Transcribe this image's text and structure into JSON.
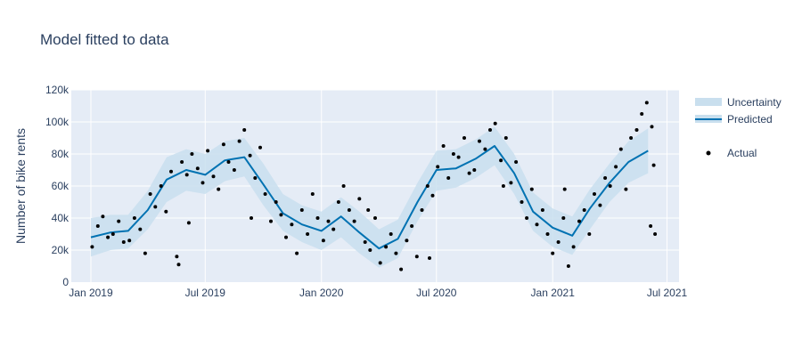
{
  "chart_data": {
    "type": "line",
    "title": "Model fitted to data",
    "xlabel": "",
    "ylabel": "Number of bike rents",
    "xlim": [
      "2018-12-01",
      "2021-07-20"
    ],
    "ylim": [
      0,
      120000
    ],
    "x_ticks": [
      {
        "date": "2019-01-01",
        "label": "Jan 2019"
      },
      {
        "date": "2019-07-01",
        "label": "Jul 2019"
      },
      {
        "date": "2020-01-01",
        "label": "Jan 2020"
      },
      {
        "date": "2020-07-01",
        "label": "Jul 2020"
      },
      {
        "date": "2021-01-01",
        "label": "Jan 2021"
      },
      {
        "date": "2021-07-01",
        "label": "Jul 2021"
      }
    ],
    "y_ticks": [
      {
        "value": 0,
        "label": "0"
      },
      {
        "value": 20000,
        "label": "20k"
      },
      {
        "value": 40000,
        "label": "40k"
      },
      {
        "value": 60000,
        "label": "60k"
      },
      {
        "value": 80000,
        "label": "80k"
      },
      {
        "value": 100000,
        "label": "100k"
      },
      {
        "value": 120000,
        "label": "120k"
      }
    ],
    "grid": true,
    "legend_position": "right",
    "colors": {
      "plot_bg": "#e5ecf6",
      "grid": "#ffffff",
      "predicted": "#0072b2",
      "uncertainty": "#c9dfee",
      "actual": "#000000"
    },
    "series": [
      {
        "name": "Uncertainty",
        "type": "band",
        "x": [
          "2019-01-01",
          "2019-02-01",
          "2019-03-01",
          "2019-04-01",
          "2019-05-01",
          "2019-06-01",
          "2019-07-01",
          "2019-08-01",
          "2019-09-01",
          "2019-10-01",
          "2019-11-01",
          "2019-12-01",
          "2020-01-01",
          "2020-02-01",
          "2020-03-01",
          "2020-04-01",
          "2020-05-01",
          "2020-06-01",
          "2020-07-01",
          "2020-08-01",
          "2020-09-01",
          "2020-10-01",
          "2020-11-01",
          "2020-12-01",
          "2021-01-01",
          "2021-02-01",
          "2021-03-01",
          "2021-04-01",
          "2021-05-01",
          "2021-06-01"
        ],
        "lower": [
          16000,
          20000,
          21000,
          33000,
          50000,
          57000,
          55000,
          63000,
          66000,
          48000,
          32000,
          25000,
          20000,
          28000,
          18000,
          9000,
          15000,
          38000,
          57000,
          59000,
          65000,
          73000,
          55000,
          32000,
          22000,
          17000,
          33000,
          50000,
          62000,
          68000
        ],
        "upper": [
          40000,
          42000,
          42000,
          57000,
          78000,
          83000,
          80000,
          88000,
          90000,
          74000,
          55000,
          48000,
          44000,
          53000,
          44000,
          33000,
          39000,
          62000,
          82000,
          83000,
          89000,
          97000,
          80000,
          56000,
          46000,
          41000,
          58000,
          74000,
          88000,
          96000
        ]
      },
      {
        "name": "Predicted",
        "type": "line",
        "x": [
          "2019-01-01",
          "2019-02-01",
          "2019-03-01",
          "2019-04-01",
          "2019-05-01",
          "2019-06-01",
          "2019-07-01",
          "2019-08-01",
          "2019-09-01",
          "2019-10-01",
          "2019-11-01",
          "2019-12-01",
          "2020-01-01",
          "2020-02-01",
          "2020-03-01",
          "2020-04-01",
          "2020-05-01",
          "2020-06-01",
          "2020-07-01",
          "2020-08-01",
          "2020-09-01",
          "2020-10-01",
          "2020-11-01",
          "2020-12-01",
          "2021-01-01",
          "2021-02-01",
          "2021-03-01",
          "2021-04-01",
          "2021-05-01",
          "2021-06-01"
        ],
        "values": [
          28000,
          31000,
          32000,
          45000,
          64000,
          70000,
          67000,
          76000,
          78000,
          61000,
          43000,
          36000,
          32000,
          41000,
          31000,
          21000,
          27000,
          50000,
          70000,
          71000,
          77000,
          85000,
          68000,
          44000,
          34000,
          29000,
          46000,
          62000,
          75000,
          82000
        ]
      },
      {
        "name": "Actual",
        "type": "scatter",
        "x": [
          "2019-01-03",
          "2019-01-12",
          "2019-01-20",
          "2019-01-28",
          "2019-02-05",
          "2019-02-14",
          "2019-02-22",
          "2019-03-03",
          "2019-03-11",
          "2019-03-20",
          "2019-03-28",
          "2019-04-05",
          "2019-04-13",
          "2019-04-22",
          "2019-04-30",
          "2019-05-08",
          "2019-05-17",
          "2019-05-25",
          "2019-06-02",
          "2019-06-10",
          "2019-06-19",
          "2019-06-27",
          "2019-07-05",
          "2019-07-14",
          "2019-07-22",
          "2019-07-30",
          "2019-08-07",
          "2019-08-16",
          "2019-08-24",
          "2019-09-01",
          "2019-09-10",
          "2019-09-18",
          "2019-09-26",
          "2019-10-04",
          "2019-10-13",
          "2019-10-21",
          "2019-10-29",
          "2019-11-06",
          "2019-11-15",
          "2019-11-23",
          "2019-12-01",
          "2019-12-10",
          "2019-12-18",
          "2019-12-26",
          "2020-01-04",
          "2020-01-12",
          "2020-01-20",
          "2020-01-28",
          "2020-02-05",
          "2020-02-14",
          "2020-02-22",
          "2020-03-01",
          "2020-03-10",
          "2020-03-18",
          "2020-03-26",
          "2020-04-03",
          "2020-04-12",
          "2020-04-20",
          "2020-04-28",
          "2020-05-06",
          "2020-05-15",
          "2020-05-23",
          "2020-05-31",
          "2020-06-08",
          "2020-06-17",
          "2020-06-25",
          "2020-07-03",
          "2020-07-12",
          "2020-07-20",
          "2020-07-28",
          "2020-08-05",
          "2020-08-14",
          "2020-08-22",
          "2020-08-30",
          "2020-09-07",
          "2020-09-16",
          "2020-09-24",
          "2020-10-02",
          "2020-10-11",
          "2020-10-19",
          "2020-10-27",
          "2020-11-04",
          "2020-11-13",
          "2020-11-21",
          "2020-11-29",
          "2020-12-07",
          "2020-12-16",
          "2020-12-24",
          "2021-01-01",
          "2021-01-10",
          "2021-01-18",
          "2021-01-26",
          "2021-02-03",
          "2021-02-12",
          "2021-02-20",
          "2021-02-28",
          "2021-03-08",
          "2021-03-17",
          "2021-03-25",
          "2021-04-02",
          "2021-04-11",
          "2021-04-19",
          "2021-04-27",
          "2021-05-05",
          "2021-05-14",
          "2021-05-22",
          "2021-05-30",
          "2021-06-07",
          "2021-06-10",
          "2021-06-12",
          "2019-05-20",
          "2019-06-05",
          "2019-09-12",
          "2020-03-15",
          "2020-06-20",
          "2020-10-15",
          "2021-01-20",
          "2021-06-05"
        ],
        "values": [
          22000,
          35000,
          41000,
          28000,
          30000,
          38000,
          25000,
          26000,
          40000,
          33000,
          18000,
          55000,
          47000,
          60000,
          44000,
          69000,
          16000,
          75000,
          67000,
          80000,
          71000,
          62000,
          82000,
          66000,
          58000,
          86000,
          75000,
          70000,
          88000,
          95000,
          79000,
          65000,
          84000,
          55000,
          38000,
          50000,
          42000,
          28000,
          36000,
          18000,
          45000,
          30000,
          55000,
          40000,
          26000,
          38000,
          33000,
          50000,
          60000,
          45000,
          38000,
          52000,
          25000,
          20000,
          40000,
          12000,
          22000,
          30000,
          18000,
          8000,
          26000,
          35000,
          16000,
          45000,
          60000,
          54000,
          72000,
          85000,
          65000,
          80000,
          78000,
          90000,
          68000,
          70000,
          88000,
          83000,
          95000,
          99000,
          76000,
          90000,
          62000,
          75000,
          50000,
          40000,
          58000,
          36000,
          45000,
          30000,
          18000,
          25000,
          40000,
          10000,
          22000,
          38000,
          45000,
          30000,
          55000,
          48000,
          65000,
          60000,
          72000,
          83000,
          58000,
          90000,
          95000,
          105000,
          112000,
          97000,
          73000,
          30000,
          11000,
          37000,
          40000,
          45000,
          15000,
          60000,
          58000,
          35000
        ]
      }
    ]
  },
  "legend": {
    "items": [
      {
        "label": "Uncertainty"
      },
      {
        "label": "Predicted"
      },
      {
        "label": "Actual"
      }
    ]
  }
}
